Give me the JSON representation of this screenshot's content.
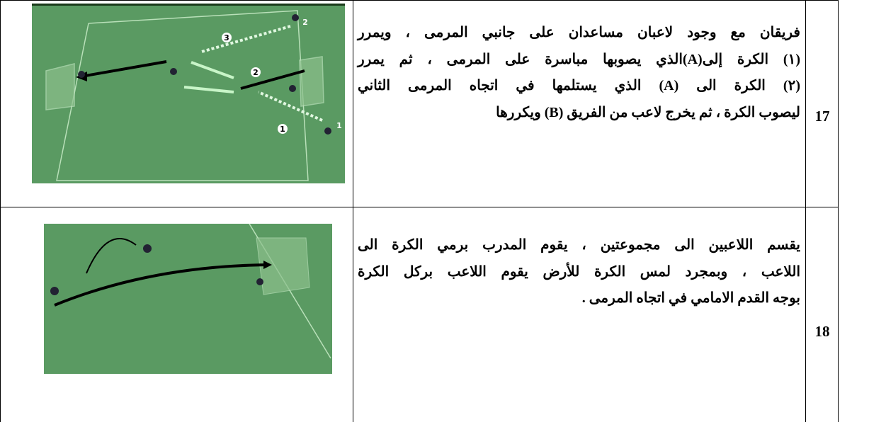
{
  "table": {
    "rows": [
      {
        "number": "17",
        "lines": [
          "فريقان مع وجود لاعبان مساعدان على جانبي المرمى ، ويمرر",
          "(١) الكرة إلى(A)الذي يصوبها مباسرة على المرمى ، ثم يمرر",
          "(٢) الكرة الى (A) الذي يستلمها في اتجاه المرمى الثاني",
          "ليصوب الكرة ، ثم يخرج لاعب من الفريق (B) ويكررها"
        ],
        "diagram_labels": [
          "3",
          "2",
          "1",
          "2",
          "1"
        ]
      },
      {
        "number": "18",
        "lines": [
          "يقسم اللاعبين الى مجموعتين ، يقوم المدرب برمي الكرة الى",
          "اللاعب ، وبمجرد لمس الكرة للأرض يقوم اللاعب بركل الكرة",
          "بوجه القدم الامامي في اتجاه المرمى ."
        ]
      }
    ]
  }
}
